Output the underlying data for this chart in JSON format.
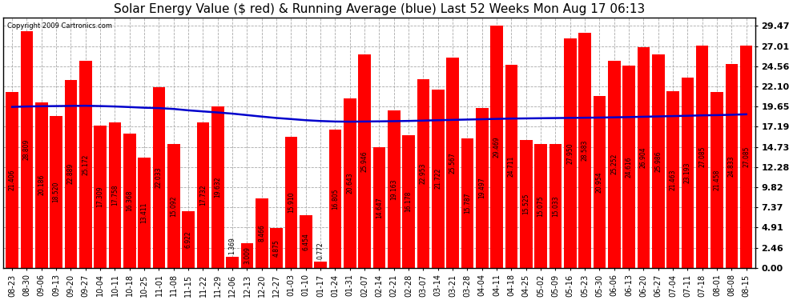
{
  "title": "Solar Energy Value ($ red) & Running Average (blue) Last 52 Weeks Mon Aug 17 06:13",
  "copyright": "Copyright 2009 Cartronics.com",
  "bar_color": "#ff0000",
  "line_color": "#0000cc",
  "background_color": "#ffffff",
  "plot_bg_color": "#ffffff",
  "grid_color": "#aaaaaa",
  "categories": [
    "08-23",
    "08-30",
    "09-06",
    "09-13",
    "09-20",
    "09-27",
    "10-04",
    "10-11",
    "10-18",
    "10-25",
    "11-01",
    "11-08",
    "11-15",
    "11-22",
    "11-29",
    "12-06",
    "12-13",
    "12-20",
    "12-27",
    "01-03",
    "01-10",
    "01-17",
    "01-24",
    "01-31",
    "02-07",
    "02-14",
    "02-21",
    "02-28",
    "03-07",
    "03-14",
    "03-21",
    "03-28",
    "04-04",
    "04-11",
    "04-18",
    "04-25",
    "05-02",
    "05-09",
    "05-16",
    "05-23",
    "05-30",
    "06-06",
    "06-13",
    "06-20",
    "06-27",
    "07-04",
    "07-11",
    "07-18",
    "08-01",
    "08-08",
    "08-15"
  ],
  "values": [
    21.406,
    28.809,
    20.186,
    18.52,
    22.889,
    25.172,
    17.309,
    17.758,
    16.368,
    13.411,
    22.033,
    15.092,
    6.922,
    17.732,
    19.632,
    1.369,
    3.009,
    8.466,
    4.875,
    15.91,
    6.454,
    0.772,
    16.805,
    20.643,
    25.946,
    14.647,
    19.163,
    16.178,
    22.953,
    21.722,
    25.567,
    15.787,
    19.497,
    29.469,
    24.711,
    15.525,
    15.075,
    15.033,
    27.95,
    28.583,
    20.954,
    25.252,
    24.616,
    26.904,
    25.986,
    21.463,
    23.193,
    27.085,
    21.458,
    24.833,
    27.085
  ],
  "running_avg": [
    19.6,
    19.65,
    19.68,
    19.7,
    19.72,
    19.74,
    19.7,
    19.65,
    19.58,
    19.5,
    19.45,
    19.35,
    19.18,
    19.05,
    18.92,
    18.78,
    18.6,
    18.42,
    18.25,
    18.12,
    17.98,
    17.88,
    17.82,
    17.8,
    17.82,
    17.84,
    17.86,
    17.89,
    17.93,
    17.98,
    18.02,
    18.06,
    18.1,
    18.14,
    18.18,
    18.2,
    18.22,
    18.24,
    18.26,
    18.28,
    18.3,
    18.33,
    18.36,
    18.4,
    18.44,
    18.48,
    18.52,
    18.57,
    18.6,
    18.64,
    18.7
  ],
  "yticks": [
    0.0,
    2.46,
    4.91,
    7.37,
    9.82,
    12.28,
    14.73,
    17.19,
    19.65,
    22.1,
    24.56,
    27.01,
    29.47
  ],
  "ylim": [
    0,
    30.5
  ],
  "title_fontsize": 11,
  "tick_fontsize": 8,
  "label_fontsize": 5.5
}
